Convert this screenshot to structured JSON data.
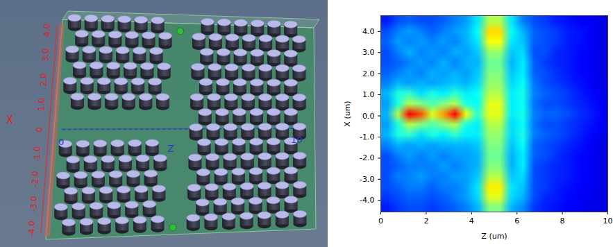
{
  "chart_data": {
    "type": "heatmap",
    "xlabel": "Z (um)",
    "ylabel": "X (um)",
    "xlim": [
      0,
      10
    ],
    "ylim": [
      -4.55,
      4.75
    ],
    "xticks": [
      0,
      2,
      4,
      6,
      8,
      10
    ],
    "yticks": [
      {
        "value": 4,
        "label": "4.0"
      },
      {
        "value": 3,
        "label": "3.0"
      },
      {
        "value": 2,
        "label": "2.0"
      },
      {
        "value": 1,
        "label": "1.0"
      },
      {
        "value": 0,
        "label": "0.0"
      },
      {
        "value": -1,
        "label": "-1.0"
      },
      {
        "value": -2,
        "label": "-2.0"
      },
      {
        "value": -3,
        "label": "-3.0"
      },
      {
        "value": -4,
        "label": "-4.0"
      }
    ],
    "clim": [
      0,
      1
    ],
    "cells": [
      [
        0.15,
        0.2,
        0.22,
        0.2,
        0.2,
        0.22,
        0.25,
        0.28,
        0.35,
        0.55,
        0.55,
        0.35,
        0.25,
        0.2,
        0.18,
        0.15,
        0.14,
        0.12,
        0.12,
        0.1
      ],
      [
        0.2,
        0.25,
        0.28,
        0.25,
        0.22,
        0.25,
        0.28,
        0.3,
        0.38,
        0.66,
        0.66,
        0.38,
        0.3,
        0.22,
        0.2,
        0.18,
        0.15,
        0.14,
        0.12,
        0.1
      ],
      [
        0.22,
        0.28,
        0.25,
        0.28,
        0.25,
        0.28,
        0.25,
        0.3,
        0.35,
        0.62,
        0.62,
        0.35,
        0.32,
        0.22,
        0.2,
        0.18,
        0.15,
        0.14,
        0.12,
        0.1
      ],
      [
        0.2,
        0.25,
        0.3,
        0.25,
        0.28,
        0.25,
        0.3,
        0.28,
        0.32,
        0.52,
        0.52,
        0.32,
        0.34,
        0.2,
        0.2,
        0.16,
        0.15,
        0.13,
        0.12,
        0.1
      ],
      [
        0.2,
        0.22,
        0.25,
        0.28,
        0.25,
        0.3,
        0.25,
        0.3,
        0.3,
        0.48,
        0.48,
        0.3,
        0.36,
        0.22,
        0.18,
        0.16,
        0.15,
        0.13,
        0.12,
        0.1
      ],
      [
        0.22,
        0.25,
        0.28,
        0.25,
        0.3,
        0.28,
        0.3,
        0.28,
        0.32,
        0.5,
        0.5,
        0.32,
        0.36,
        0.22,
        0.2,
        0.17,
        0.15,
        0.13,
        0.12,
        0.1
      ],
      [
        0.25,
        0.3,
        0.28,
        0.3,
        0.28,
        0.3,
        0.32,
        0.3,
        0.34,
        0.52,
        0.52,
        0.34,
        0.38,
        0.24,
        0.2,
        0.18,
        0.16,
        0.14,
        0.12,
        0.1
      ],
      [
        0.3,
        0.4,
        0.42,
        0.34,
        0.4,
        0.36,
        0.42,
        0.36,
        0.38,
        0.55,
        0.55,
        0.36,
        0.4,
        0.25,
        0.22,
        0.2,
        0.18,
        0.15,
        0.13,
        0.11
      ],
      [
        0.28,
        0.4,
        0.55,
        0.5,
        0.45,
        0.5,
        0.55,
        0.4,
        0.38,
        0.6,
        0.6,
        0.36,
        0.38,
        0.24,
        0.2,
        0.2,
        0.18,
        0.16,
        0.14,
        0.12
      ],
      [
        0.3,
        0.55,
        0.88,
        0.8,
        0.6,
        0.72,
        0.88,
        0.62,
        0.42,
        0.6,
        0.6,
        0.36,
        0.4,
        0.25,
        0.22,
        0.22,
        0.2,
        0.17,
        0.15,
        0.12
      ],
      [
        0.28,
        0.4,
        0.55,
        0.5,
        0.45,
        0.5,
        0.55,
        0.4,
        0.36,
        0.55,
        0.55,
        0.34,
        0.38,
        0.24,
        0.2,
        0.2,
        0.18,
        0.16,
        0.14,
        0.12
      ],
      [
        0.3,
        0.4,
        0.42,
        0.34,
        0.4,
        0.36,
        0.42,
        0.36,
        0.36,
        0.52,
        0.52,
        0.34,
        0.4,
        0.25,
        0.22,
        0.2,
        0.18,
        0.15,
        0.13,
        0.11
      ],
      [
        0.25,
        0.3,
        0.28,
        0.3,
        0.28,
        0.3,
        0.3,
        0.3,
        0.32,
        0.5,
        0.5,
        0.32,
        0.38,
        0.22,
        0.2,
        0.18,
        0.16,
        0.14,
        0.12,
        0.1
      ],
      [
        0.2,
        0.25,
        0.28,
        0.25,
        0.28,
        0.25,
        0.28,
        0.28,
        0.3,
        0.48,
        0.48,
        0.3,
        0.36,
        0.22,
        0.2,
        0.17,
        0.15,
        0.13,
        0.12,
        0.1
      ],
      [
        0.2,
        0.22,
        0.25,
        0.25,
        0.25,
        0.28,
        0.25,
        0.28,
        0.3,
        0.5,
        0.5,
        0.3,
        0.36,
        0.2,
        0.18,
        0.16,
        0.15,
        0.13,
        0.12,
        0.1
      ],
      [
        0.2,
        0.25,
        0.25,
        0.28,
        0.25,
        0.25,
        0.28,
        0.28,
        0.32,
        0.55,
        0.55,
        0.32,
        0.34,
        0.2,
        0.18,
        0.16,
        0.15,
        0.13,
        0.12,
        0.1
      ],
      [
        0.2,
        0.22,
        0.25,
        0.25,
        0.22,
        0.25,
        0.25,
        0.28,
        0.35,
        0.64,
        0.64,
        0.35,
        0.32,
        0.2,
        0.18,
        0.15,
        0.14,
        0.12,
        0.12,
        0.1
      ],
      [
        0.18,
        0.2,
        0.22,
        0.22,
        0.2,
        0.22,
        0.25,
        0.28,
        0.34,
        0.6,
        0.6,
        0.34,
        0.3,
        0.2,
        0.16,
        0.15,
        0.13,
        0.12,
        0.11,
        0.1
      ],
      [
        0.15,
        0.18,
        0.2,
        0.2,
        0.18,
        0.2,
        0.22,
        0.25,
        0.3,
        0.5,
        0.5,
        0.3,
        0.26,
        0.18,
        0.15,
        0.14,
        0.12,
        0.12,
        0.1,
        0.1
      ]
    ]
  },
  "render_3d": {
    "x_axis": {
      "label": "X",
      "ticks": [
        "4.0",
        "3.0",
        "2.0",
        "1.0",
        "0",
        "-1.0",
        "-2.0",
        "-3.0",
        "-4.0"
      ]
    },
    "z_axis": {
      "label": "Z",
      "ticks": [
        "0",
        "10"
      ]
    }
  }
}
